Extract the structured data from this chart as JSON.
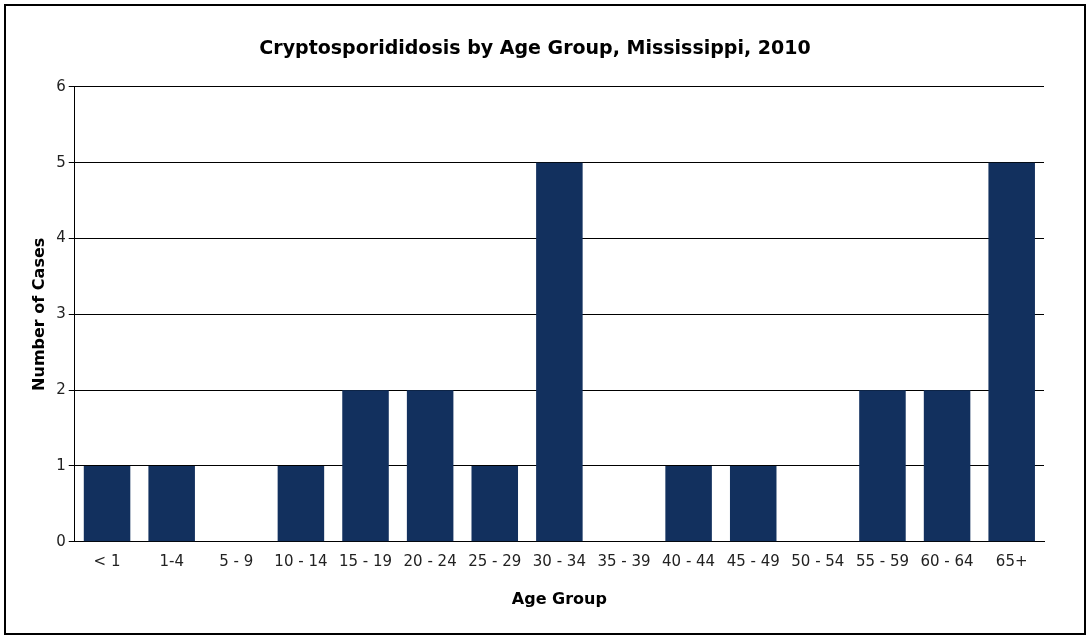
{
  "chart_data": {
    "type": "bar",
    "title": "Cryptosporididosis by Age Group, Mississippi, 2010",
    "xlabel": "Age Group",
    "ylabel": "Number of Cases",
    "categories": [
      "< 1",
      "1-4",
      "5 - 9",
      "10 - 14",
      "15 - 19",
      "20 - 24",
      "25 - 29",
      "30 - 34",
      "35 - 39",
      "40 - 44",
      "45 - 49",
      "50 - 54",
      "55 - 59",
      "60 - 64",
      "65+"
    ],
    "values": [
      1,
      1,
      0,
      1,
      2,
      2,
      1,
      5,
      0,
      1,
      1,
      0,
      2,
      2,
      5
    ],
    "color": "#12305e",
    "ylim": [
      0,
      6
    ],
    "yticks": [
      0,
      1,
      2,
      3,
      4,
      5,
      6
    ],
    "grid": "y",
    "legend": false
  }
}
